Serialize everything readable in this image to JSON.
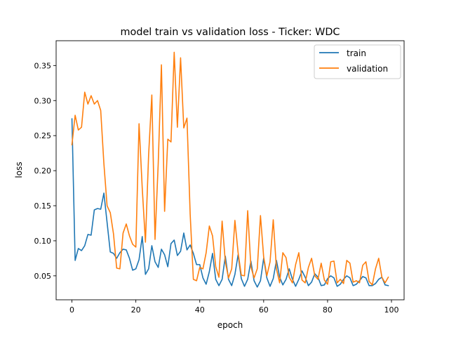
{
  "chart_data": {
    "type": "line",
    "title": "model train vs validation loss - Ticker: WDC",
    "xlabel": "epoch",
    "ylabel": "loss",
    "xlim": [
      -4.95,
      103.95
    ],
    "ylim": [
      0.0158,
      0.3854
    ],
    "xticks": [
      0,
      20,
      40,
      60,
      80,
      100
    ],
    "yticks": [
      0.05,
      0.1,
      0.15,
      0.2,
      0.25,
      0.3,
      0.35
    ],
    "grid": false,
    "legend_position": "top-right",
    "series": [
      {
        "name": "train",
        "color": "#1f77b4",
        "values": [
          0.274,
          0.072,
          0.089,
          0.086,
          0.093,
          0.109,
          0.108,
          0.144,
          0.146,
          0.145,
          0.168,
          0.126,
          0.084,
          0.082,
          0.075,
          0.083,
          0.088,
          0.087,
          0.075,
          0.058,
          0.06,
          0.073,
          0.106,
          0.052,
          0.06,
          0.093,
          0.07,
          0.062,
          0.088,
          0.08,
          0.063,
          0.096,
          0.101,
          0.079,
          0.085,
          0.111,
          0.087,
          0.094,
          0.082,
          0.066,
          0.066,
          0.047,
          0.038,
          0.056,
          0.082,
          0.045,
          0.036,
          0.045,
          0.078,
          0.045,
          0.036,
          0.052,
          0.08,
          0.046,
          0.035,
          0.045,
          0.071,
          0.043,
          0.034,
          0.043,
          0.075,
          0.047,
          0.035,
          0.046,
          0.072,
          0.048,
          0.037,
          0.045,
          0.06,
          0.045,
          0.035,
          0.045,
          0.057,
          0.048,
          0.036,
          0.041,
          0.053,
          0.048,
          0.036,
          0.037,
          0.046,
          0.05,
          0.047,
          0.035,
          0.038,
          0.045,
          0.05,
          0.047,
          0.036,
          0.038,
          0.043,
          0.049,
          0.047,
          0.036,
          0.036,
          0.039,
          0.045,
          0.048,
          0.037,
          0.036
        ]
      },
      {
        "name": "validation",
        "color": "#ff7f0e",
        "values": [
          0.237,
          0.279,
          0.258,
          0.262,
          0.312,
          0.295,
          0.307,
          0.295,
          0.3,
          0.286,
          0.21,
          0.15,
          0.14,
          0.11,
          0.061,
          0.06,
          0.111,
          0.124,
          0.107,
          0.095,
          0.091,
          0.267,
          0.175,
          0.098,
          0.223,
          0.308,
          0.102,
          0.21,
          0.351,
          0.142,
          0.245,
          0.241,
          0.369,
          0.262,
          0.361,
          0.261,
          0.275,
          0.138,
          0.045,
          0.043,
          0.062,
          0.06,
          0.083,
          0.121,
          0.107,
          0.063,
          0.048,
          0.128,
          0.07,
          0.047,
          0.06,
          0.129,
          0.083,
          0.051,
          0.05,
          0.143,
          0.063,
          0.047,
          0.06,
          0.136,
          0.077,
          0.05,
          0.07,
          0.13,
          0.06,
          0.04,
          0.083,
          0.076,
          0.048,
          0.04,
          0.066,
          0.083,
          0.044,
          0.04,
          0.062,
          0.075,
          0.05,
          0.045,
          0.068,
          0.044,
          0.038,
          0.07,
          0.071,
          0.04,
          0.045,
          0.039,
          0.072,
          0.068,
          0.041,
          0.043,
          0.04,
          0.065,
          0.07,
          0.042,
          0.037,
          0.06,
          0.075,
          0.048,
          0.04,
          0.048
        ]
      }
    ]
  }
}
